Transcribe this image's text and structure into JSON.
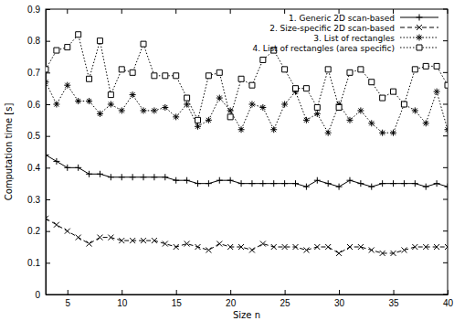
{
  "chart_data": {
    "type": "line",
    "x_label": "Size n",
    "y_label": "Computation time [s]",
    "x": [
      3,
      4,
      5,
      6,
      7,
      8,
      9,
      10,
      11,
      12,
      13,
      14,
      15,
      16,
      17,
      18,
      19,
      20,
      21,
      22,
      23,
      24,
      25,
      26,
      27,
      28,
      29,
      30,
      31,
      32,
      33,
      34,
      35,
      36,
      37,
      38,
      39,
      40
    ],
    "xlim": [
      3,
      40
    ],
    "xticks": [
      5,
      10,
      15,
      20,
      25,
      30,
      35,
      40
    ],
    "ylim": [
      0,
      0.9
    ],
    "yticks": [
      0,
      0.1,
      0.2,
      0.3,
      0.4,
      0.5,
      0.6,
      0.7,
      0.8,
      0.9
    ],
    "grid": false,
    "legend": "upper right",
    "series": [
      {
        "name": "1. Generic 2D scan-based",
        "color": "#000000",
        "marker": "plus",
        "line_style": "solid",
        "values": [
          0.44,
          0.42,
          0.4,
          0.4,
          0.38,
          0.38,
          0.37,
          0.37,
          0.37,
          0.37,
          0.37,
          0.37,
          0.36,
          0.36,
          0.35,
          0.35,
          0.36,
          0.36,
          0.35,
          0.35,
          0.35,
          0.35,
          0.35,
          0.35,
          0.34,
          0.36,
          0.35,
          0.34,
          0.36,
          0.35,
          0.34,
          0.35,
          0.35,
          0.35,
          0.35,
          0.34,
          0.35,
          0.34
        ]
      },
      {
        "name": "2. Size-specific 2D scan-based",
        "color": "#000000",
        "marker": "cross",
        "line_style": "dashed",
        "values": [
          0.24,
          0.22,
          0.2,
          0.18,
          0.16,
          0.18,
          0.18,
          0.17,
          0.17,
          0.17,
          0.17,
          0.16,
          0.15,
          0.16,
          0.15,
          0.14,
          0.16,
          0.15,
          0.15,
          0.14,
          0.16,
          0.15,
          0.15,
          0.15,
          0.14,
          0.15,
          0.15,
          0.13,
          0.15,
          0.15,
          0.14,
          0.13,
          0.13,
          0.14,
          0.15,
          0.15,
          0.15,
          0.15
        ]
      },
      {
        "name": "3. List of rectangles",
        "color": "#000000",
        "marker": "asterisk",
        "line_style": "dotted",
        "values": [
          0.67,
          0.6,
          0.66,
          0.61,
          0.61,
          0.57,
          0.6,
          0.58,
          0.63,
          0.58,
          0.58,
          0.59,
          0.56,
          0.6,
          0.53,
          0.55,
          0.62,
          0.58,
          0.52,
          0.6,
          0.59,
          0.52,
          0.6,
          0.64,
          0.55,
          0.57,
          0.51,
          0.6,
          0.55,
          0.58,
          0.54,
          0.51,
          0.51,
          0.6,
          0.58,
          0.54,
          0.64,
          0.52
        ]
      },
      {
        "name": "4. List of rectangles (area specific)",
        "color": "#000000",
        "marker": "square",
        "line_style": "dotted",
        "values": [
          0.71,
          0.77,
          0.78,
          0.82,
          0.68,
          0.8,
          0.63,
          0.71,
          0.7,
          0.79,
          0.69,
          0.69,
          0.69,
          0.62,
          0.55,
          0.69,
          0.7,
          0.56,
          0.68,
          0.66,
          0.74,
          0.77,
          0.71,
          0.65,
          0.65,
          0.59,
          0.71,
          0.59,
          0.7,
          0.71,
          0.67,
          0.62,
          0.64,
          0.6,
          0.71,
          0.72,
          0.72,
          0.66
        ]
      }
    ]
  }
}
